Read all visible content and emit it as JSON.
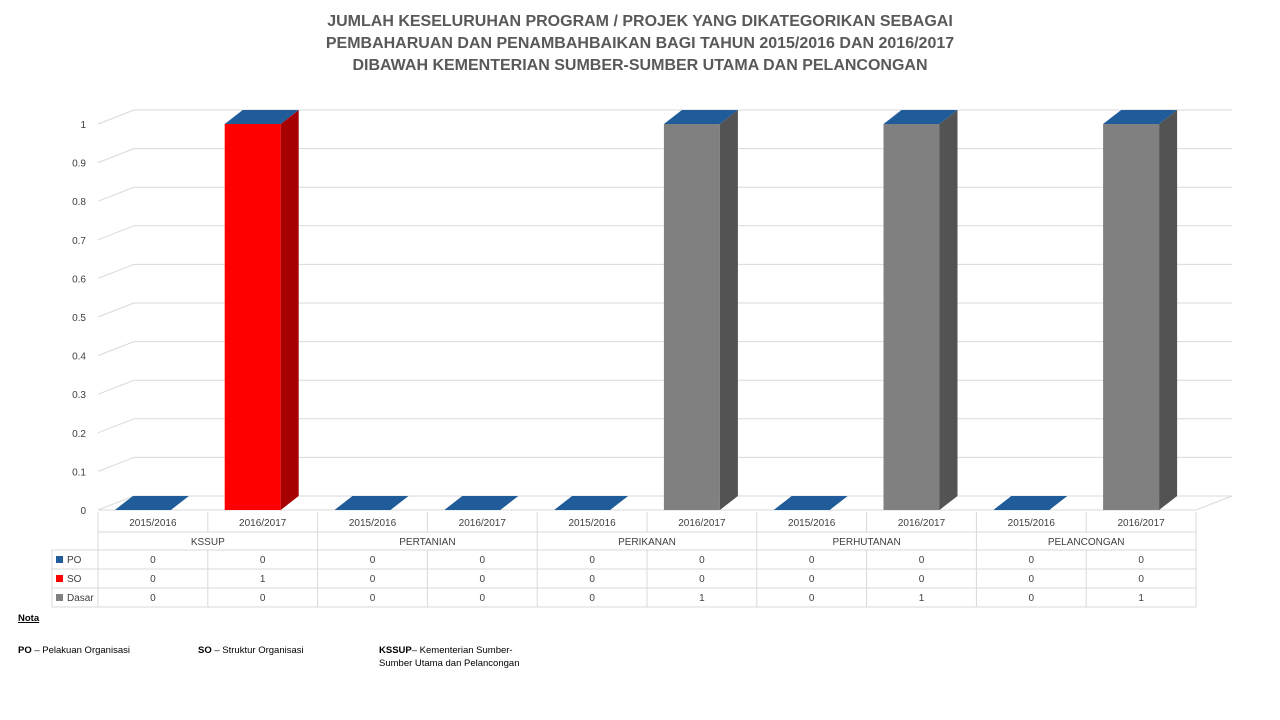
{
  "title_lines": [
    "JUMLAH KESELURUHAN PROGRAM / PROJEK  YANG DIKATEGORIKAN SEBAGAI",
    "PEMBAHARUAN DAN PENAMBAHBAIKAN BAGI TAHUN 2015/2016 DAN 2016/2017",
    "DIBAWAH KEMENTERIAN SUMBER-SUMBER UTAMA DAN PELANCONGAN"
  ],
  "chart_data": {
    "type": "bar",
    "title": "JUMLAH KESELURUHAN PROGRAM / PROJEK  YANG DIKATEGORIKAN SEBAGAI PEMBAHARUAN DAN PENAMBAHBAIKAN BAGI TAHUN 2015/2016 DAN 2016/2017 DIBAWAH KEMENTERIAN SUMBER-SUMBER UTAMA DAN PELANCONGAN",
    "stacked": true,
    "ylim": [
      0,
      1
    ],
    "yticks": [
      "0",
      "0.1",
      "0.2",
      "0.3",
      "0.4",
      "0.5",
      "0.6",
      "0.7",
      "0.8",
      "0.9",
      "1"
    ],
    "groups": [
      "KSSUP",
      "PERTANIAN",
      "PERIKANAN",
      "PERHUTANAN",
      "PELANCONGAN"
    ],
    "categories": [
      "2015/2016",
      "2016/2017",
      "2015/2016",
      "2016/2017",
      "2015/2016",
      "2016/2017",
      "2015/2016",
      "2016/2017",
      "2015/2016",
      "2016/2017"
    ],
    "series": [
      {
        "name": "PO",
        "color": "#1F5C99",
        "values": [
          0,
          0,
          0,
          0,
          0,
          0,
          0,
          0,
          0,
          0
        ]
      },
      {
        "name": "SO",
        "color": "#FF0000",
        "values": [
          0,
          1,
          0,
          0,
          0,
          0,
          0,
          0,
          0,
          0
        ]
      },
      {
        "name": "Dasar",
        "color": "#808080",
        "values": [
          0,
          0,
          0,
          0,
          0,
          1,
          0,
          1,
          0,
          1
        ]
      }
    ],
    "data_table": true,
    "grid": true
  },
  "notes": {
    "heading": "Nota",
    "po_abbr": "PO",
    "po_text": " – Pelakuan Organisasi",
    "so_abbr": "SO",
    "so_text": " – Struktur Organisasi",
    "kssup_abbr": "KSSUP",
    "kssup_text_1": "– Kementerian Sumber-",
    "kssup_text_2": "Sumber Utama dan Pelancongan"
  }
}
